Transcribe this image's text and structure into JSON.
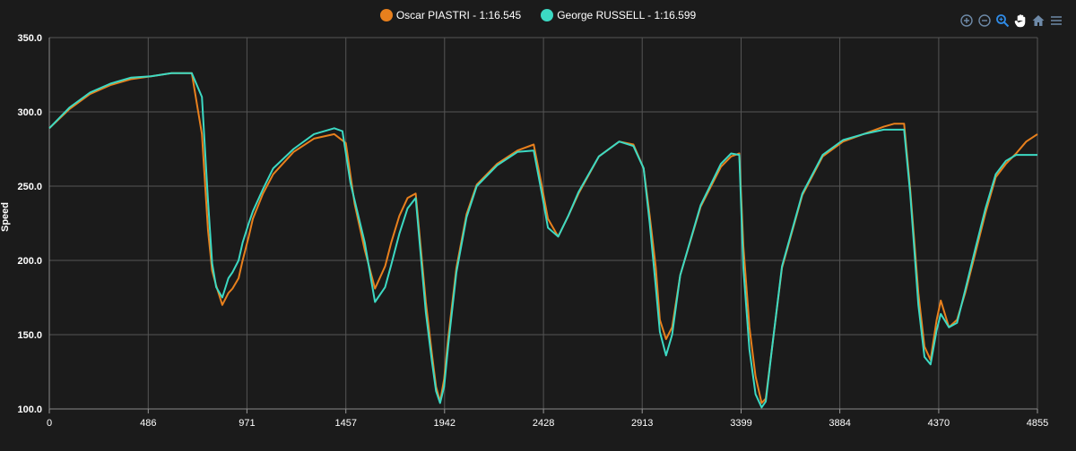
{
  "legend": {
    "piastri": "Oscar PIASTRI - 1:16.545",
    "russell": "George RUSSELL - 1:16.599"
  },
  "toolbar": [
    "zoom-in-icon",
    "zoom-out-icon",
    "selection-zoom-icon",
    "pan-icon",
    "home-icon",
    "menu-icon"
  ],
  "colors": {
    "piastri": "#e8801d",
    "russell": "#3cd9c3",
    "background": "#1b1b1b",
    "grid": "#555555"
  },
  "chart_data": {
    "type": "line",
    "title": "",
    "xlabel": "",
    "ylabel": "Speed",
    "xlim": [
      0,
      4855
    ],
    "ylim": [
      100,
      350
    ],
    "xticks": [
      "0",
      "486",
      "971",
      "1457",
      "1942",
      "2428",
      "2913",
      "3399",
      "3884",
      "4370",
      "4855"
    ],
    "yticks": [
      "100.0",
      "150.0",
      "200.0",
      "250.0",
      "300.0",
      "350.0"
    ],
    "grid": true,
    "legend_position": "top-center",
    "series": [
      {
        "name": "Oscar PIASTRI - 1:16.545",
        "color": "#e8801d",
        "x": [
          0,
          100,
          200,
          300,
          400,
          500,
          600,
          700,
          750,
          780,
          800,
          820,
          850,
          880,
          900,
          930,
          950,
          980,
          1000,
          1050,
          1100,
          1200,
          1300,
          1400,
          1457,
          1500,
          1550,
          1600,
          1650,
          1680,
          1720,
          1760,
          1800,
          1850,
          1880,
          1900,
          1920,
          1940,
          1960,
          2000,
          2050,
          2100,
          2200,
          2300,
          2380,
          2420,
          2450,
          2500,
          2550,
          2600,
          2700,
          2800,
          2870,
          2920,
          2950,
          2980,
          3000,
          3030,
          3060,
          3100,
          3200,
          3300,
          3350,
          3390,
          3410,
          3440,
          3470,
          3500,
          3520,
          3550,
          3600,
          3700,
          3800,
          3900,
          4000,
          4100,
          4150,
          4200,
          4230,
          4270,
          4300,
          4330,
          4360,
          4380,
          4420,
          4460,
          4500,
          4550,
          4600,
          4650,
          4700,
          4750,
          4800,
          4855
        ],
        "y": [
          289,
          302,
          312,
          318,
          322,
          324,
          326,
          326,
          285,
          220,
          193,
          183,
          170,
          178,
          181,
          188,
          200,
          216,
          228,
          245,
          258,
          273,
          282,
          285,
          279,
          238,
          207,
          181,
          196,
          212,
          230,
          242,
          245,
          172,
          137,
          115,
          105,
          120,
          148,
          195,
          231,
          251,
          265,
          274,
          278,
          250,
          228,
          216,
          230,
          245,
          270,
          280,
          278,
          262,
          230,
          195,
          160,
          147,
          155,
          190,
          236,
          263,
          270,
          272,
          210,
          155,
          122,
          104,
          107,
          140,
          195,
          244,
          270,
          280,
          285,
          290,
          292,
          292,
          248,
          178,
          142,
          133,
          160,
          173,
          155,
          160,
          178,
          205,
          232,
          256,
          265,
          272,
          280,
          285
        ]
      },
      {
        "name": "George RUSSELL - 1:16.599",
        "color": "#3cd9c3",
        "x": [
          0,
          100,
          200,
          300,
          400,
          500,
          600,
          700,
          750,
          780,
          800,
          820,
          850,
          880,
          900,
          930,
          950,
          980,
          1000,
          1050,
          1100,
          1200,
          1300,
          1400,
          1440,
          1480,
          1550,
          1600,
          1650,
          1680,
          1720,
          1760,
          1800,
          1850,
          1880,
          1900,
          1920,
          1940,
          1960,
          2000,
          2050,
          2100,
          2200,
          2300,
          2380,
          2420,
          2450,
          2500,
          2550,
          2600,
          2700,
          2800,
          2870,
          2920,
          2950,
          2980,
          3000,
          3030,
          3060,
          3100,
          3200,
          3300,
          3350,
          3390,
          3410,
          3440,
          3470,
          3500,
          3520,
          3550,
          3600,
          3700,
          3800,
          3900,
          4000,
          4100,
          4150,
          4200,
          4230,
          4270,
          4300,
          4330,
          4360,
          4380,
          4420,
          4460,
          4500,
          4550,
          4600,
          4650,
          4700,
          4750,
          4800,
          4855
        ],
        "y": [
          289,
          303,
          313,
          319,
          323,
          324,
          326,
          326,
          310,
          240,
          198,
          182,
          175,
          188,
          192,
          200,
          212,
          225,
          233,
          248,
          262,
          275,
          285,
          289,
          287,
          252,
          212,
          172,
          182,
          197,
          218,
          235,
          242,
          165,
          132,
          112,
          104,
          115,
          143,
          192,
          229,
          250,
          264,
          273,
          274,
          245,
          222,
          216,
          230,
          246,
          270,
          280,
          277,
          262,
          225,
          182,
          152,
          136,
          150,
          190,
          237,
          265,
          272,
          271,
          195,
          140,
          110,
          101,
          105,
          140,
          196,
          245,
          271,
          281,
          285,
          288,
          288,
          288,
          245,
          170,
          135,
          130,
          153,
          164,
          155,
          158,
          180,
          208,
          235,
          258,
          267,
          271,
          271,
          271
        ]
      }
    ]
  }
}
